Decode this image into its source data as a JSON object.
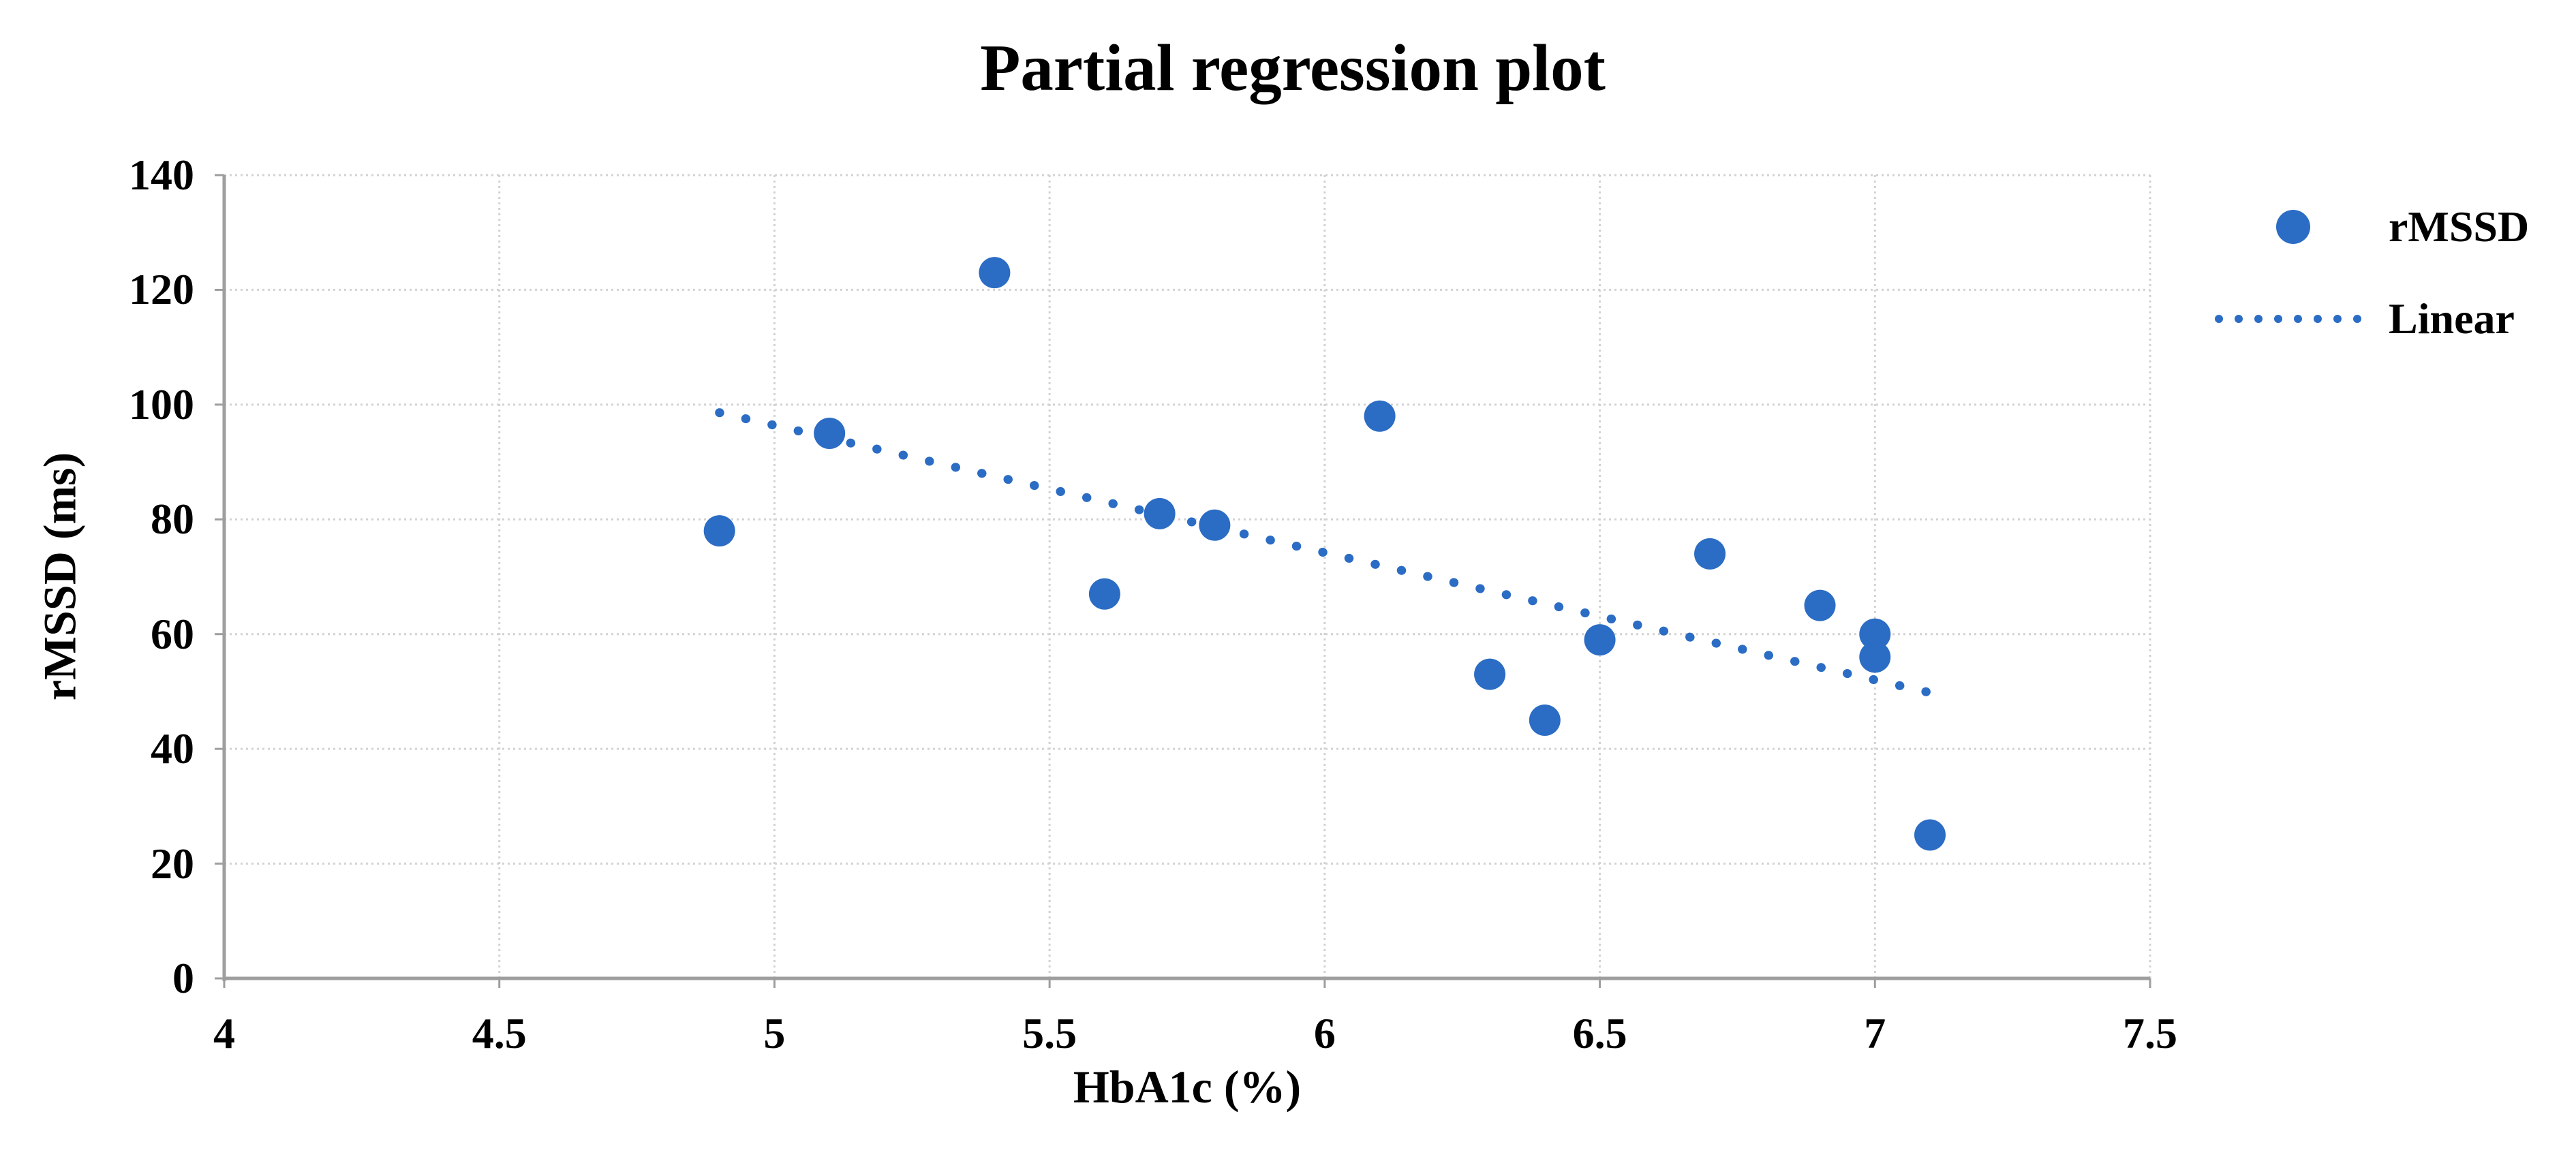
{
  "header": {
    "title": "Partial regression plot"
  },
  "legend": {
    "items": [
      {
        "label": "rMSSD",
        "marker": "dot"
      },
      {
        "label": "Linear",
        "marker": "dotted-line"
      }
    ]
  },
  "axes": {
    "x": {
      "title": "HbA1c (%)",
      "min": 4,
      "max": 7.5,
      "tick_values": [
        4,
        4.5,
        5,
        5.5,
        6,
        6.5,
        7,
        7.5
      ],
      "tick_labels": [
        "4",
        "4.5",
        "5",
        "5.5",
        "6",
        "6.5",
        "7",
        "7.5"
      ]
    },
    "y": {
      "title": "rMSSD (ms)",
      "min": 0,
      "max": 140,
      "tick_values": [
        0,
        20,
        40,
        60,
        80,
        100,
        120,
        140
      ],
      "tick_labels": [
        "0",
        "20",
        "40",
        "60",
        "80",
        "100",
        "120",
        "140"
      ]
    }
  },
  "colors": {
    "series_blue": "#2B6CC4",
    "gridline": "#D2D2D2",
    "axis_line": "#9E9E9E",
    "text": "#000000",
    "background": "#FFFFFF"
  },
  "chart_data": {
    "type": "scatter",
    "title": "Partial regression plot",
    "xlabel": "HbA1c (%)",
    "ylabel": "rMSSD (ms)",
    "xlim": [
      4,
      7.5
    ],
    "ylim": [
      0,
      140
    ],
    "grid": true,
    "legend_position": "right",
    "series": [
      {
        "name": "rMSSD",
        "type": "scatter",
        "points": [
          [
            4.9,
            78
          ],
          [
            5.1,
            95
          ],
          [
            5.4,
            123
          ],
          [
            5.6,
            67
          ],
          [
            5.7,
            81
          ],
          [
            5.8,
            79
          ],
          [
            6.1,
            98
          ],
          [
            6.3,
            53
          ],
          [
            6.4,
            45
          ],
          [
            6.5,
            59
          ],
          [
            6.7,
            74
          ],
          [
            6.9,
            65
          ],
          [
            7.0,
            60
          ],
          [
            7.0,
            56
          ],
          [
            7.1,
            25
          ]
        ]
      },
      {
        "name": "Linear",
        "type": "trendline",
        "start": [
          4.9,
          98.6
        ],
        "end": [
          7.1,
          49.8
        ]
      }
    ]
  }
}
